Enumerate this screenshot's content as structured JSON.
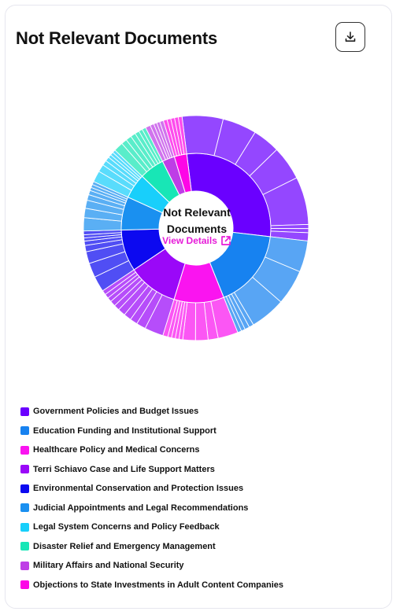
{
  "header": {
    "title": "Not Relevant Documents"
  },
  "center": {
    "title": "Not Relevant Documents",
    "link_label": "View Details"
  },
  "icons": {
    "download": "download-icon",
    "external": "external-link-icon"
  },
  "chart_data": {
    "type": "sunburst",
    "title": "Not Relevant Documents",
    "legend_position": "bottom",
    "series": [
      {
        "name": "Government Policies and Budget Issues",
        "color": "#6a00ff",
        "value": 32,
        "children": [
          6,
          5,
          4,
          5,
          7,
          0.6,
          0.6,
          1.2
        ]
      },
      {
        "name": "Education Funding and Institutional Support",
        "color": "#1782f0",
        "value": 19,
        "children": [
          4,
          4.5,
          4.5,
          0.6,
          0.6,
          0.5,
          0.5
        ]
      },
      {
        "name": "Healthcare Policy and Medical Concerns",
        "color": "#fa14f0",
        "value": 12,
        "children": [
          3.2,
          1.6,
          2,
          2,
          0.6,
          0.6,
          0.6,
          0.6,
          0.8
        ]
      },
      {
        "name": "Terri Schiavo Case and Life Support Matters",
        "color": "#9a08f8",
        "value": 12,
        "children": [
          3,
          1.5,
          1.2,
          1.2,
          1.2,
          0.9,
          0.9,
          0.7,
          0.7,
          0.7
        ]
      },
      {
        "name": "Environmental Conservation and Protection Issues",
        "color": "#0c09f0",
        "value": 10,
        "children": [
          2.5,
          2.3,
          1.9,
          1,
          0.7,
          0.5,
          0.5,
          0.6
        ]
      },
      {
        "name": "Judicial Appointments and Legal Recommendations",
        "color": "#1a90f0",
        "value": 8,
        "children": [
          2.1,
          1.5,
          1.3,
          0.9,
          0.7,
          0.5,
          0.5,
          0.5
        ]
      },
      {
        "name": "Legal System Concerns and Policy Feedback",
        "color": "#18cffb",
        "value": 6,
        "children": [
          1.8,
          1.2,
          0.8,
          0.7,
          0.5,
          0.5,
          0.5
        ]
      },
      {
        "name": "Disaster Relief and Emergency Management",
        "color": "#18e6b6",
        "value": 6,
        "children": [
          1.5,
          0.9,
          0.9,
          0.8,
          0.7,
          0.6,
          0.6
        ]
      },
      {
        "name": "Military Affairs and National Security",
        "color": "#be3ee6",
        "value": 3,
        "children": [
          0.8,
          0.6,
          0.5,
          0.5,
          0.6
        ]
      },
      {
        "name": "Objections to State Investments in Adult Content Companies",
        "color": "#fd06e6",
        "value": 3,
        "children": [
          0.6,
          0.6,
          0.6,
          0.6,
          0.6
        ]
      }
    ]
  }
}
